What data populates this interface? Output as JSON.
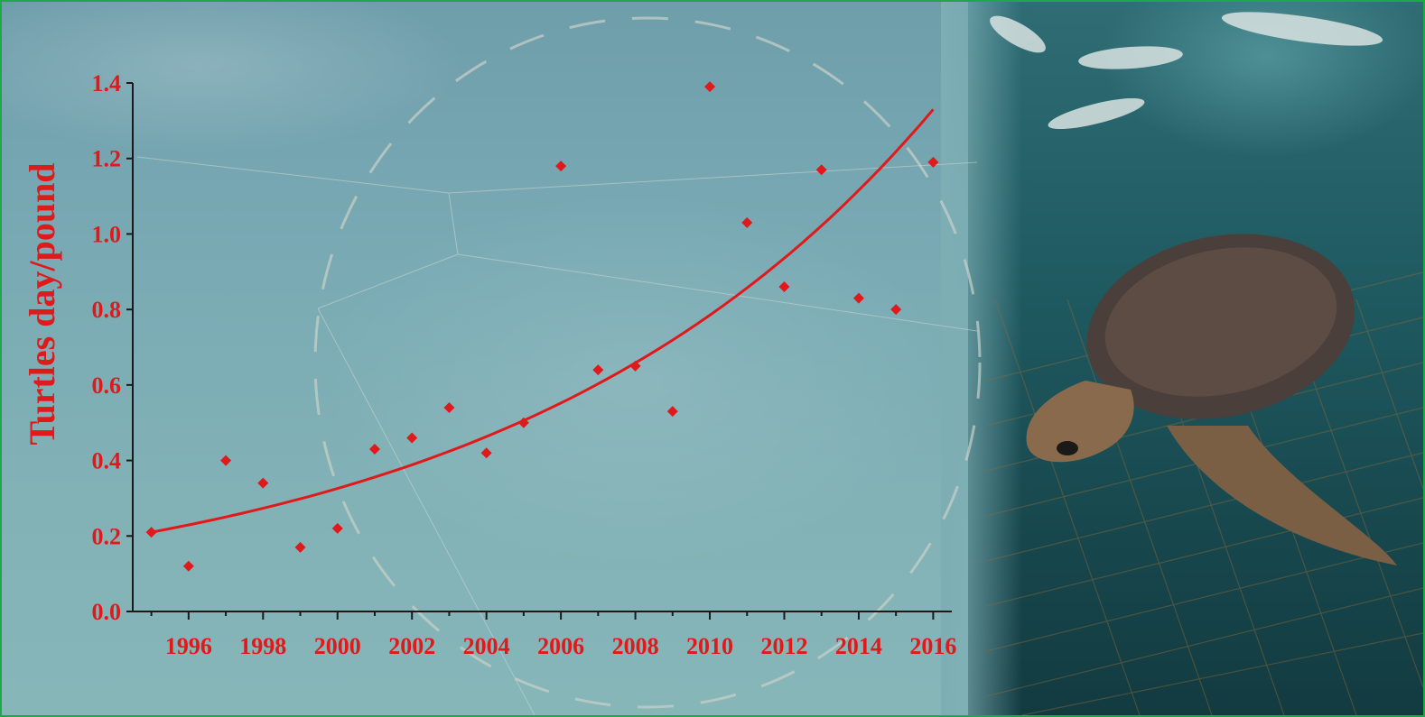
{
  "colors": {
    "accent": "#e0191b",
    "frame": "#1fa84a",
    "axis": "#1a1a1a"
  },
  "chart_data": {
    "type": "scatter",
    "title": "",
    "xlabel": "",
    "ylabel": "Turtles day/pound",
    "xlim": [
      1994.5,
      2016.5
    ],
    "ylim": [
      0,
      1.4
    ],
    "x_ticks": [
      "1996",
      "1998",
      "2000",
      "2002",
      "2004",
      "2006",
      "2008",
      "2010",
      "2012",
      "2014",
      "2016"
    ],
    "y_ticks": [
      "0.0",
      "0.2",
      "0.4",
      "0.6",
      "0.8",
      "1.0",
      "1.2",
      "1.4"
    ],
    "grid": false,
    "legend": "none",
    "series": [
      {
        "marker": "diamond",
        "points": [
          {
            "x": 1995,
            "y": 0.21
          },
          {
            "x": 1996,
            "y": 0.12
          },
          {
            "x": 1997,
            "y": 0.4
          },
          {
            "x": 1998,
            "y": 0.34
          },
          {
            "x": 1999,
            "y": 0.17
          },
          {
            "x": 2000,
            "y": 0.22
          },
          {
            "x": 2001,
            "y": 0.43
          },
          {
            "x": 2002,
            "y": 0.46
          },
          {
            "x": 2003,
            "y": 0.54
          },
          {
            "x": 2004,
            "y": 0.42
          },
          {
            "x": 2005,
            "y": 0.5
          },
          {
            "x": 2006,
            "y": 1.18
          },
          {
            "x": 2007,
            "y": 0.64
          },
          {
            "x": 2008,
            "y": 0.65
          },
          {
            "x": 2009,
            "y": 0.53
          },
          {
            "x": 2010,
            "y": 1.39
          },
          {
            "x": 2011,
            "y": 1.03
          },
          {
            "x": 2012,
            "y": 0.86
          },
          {
            "x": 2013,
            "y": 1.17
          },
          {
            "x": 2014,
            "y": 0.83
          },
          {
            "x": 2015,
            "y": 0.8
          },
          {
            "x": 2016,
            "y": 1.19
          }
        ]
      }
    ],
    "trendline": {
      "type": "exponential",
      "x": [
        1995,
        2016
      ],
      "y_start": 0.21,
      "y_end": 1.33
    }
  }
}
